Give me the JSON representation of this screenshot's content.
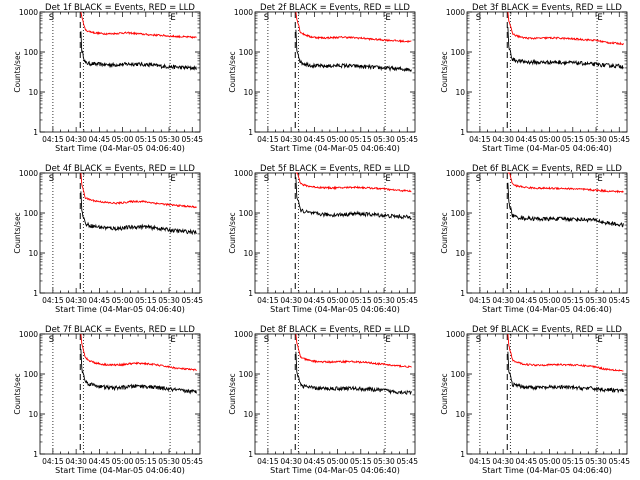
{
  "chart_data": [
    {
      "type": "line",
      "title": "Det 1f BLACK = Events, RED = LLD",
      "xlabel": "Start Time (04-Mar-05 04:06:40)",
      "ylabel": "Counts/sec",
      "ylog": true,
      "ylim": [
        1,
        1000
      ],
      "xtick_labels": [
        "04:15",
        "04:30",
        "04:45",
        "05:00",
        "05:15",
        "05:30",
        "05:45"
      ],
      "ytick_labels": [
        "1",
        "10",
        "100",
        "1000"
      ],
      "markers": {
        "S": "S",
        "E": "E"
      },
      "series": [
        {
          "color": "#000000",
          "values": [
            55,
            52,
            50,
            49,
            48,
            48,
            49,
            50,
            50,
            49,
            48,
            46,
            44,
            43,
            42,
            41,
            40,
            40
          ]
        },
        {
          "color": "#ff0000",
          "values": [
            380,
            330,
            300,
            290,
            285,
            290,
            300,
            300,
            290,
            280,
            270,
            265,
            260,
            250,
            245,
            240,
            235,
            230
          ]
        }
      ]
    },
    {
      "type": "line",
      "title": "Det 2f BLACK = Events, RED = LLD",
      "xlabel": "Start Time (04-Mar-05 04:06:40)",
      "ylabel": "Counts/sec",
      "ylog": true,
      "ylim": [
        1,
        1000
      ],
      "xtick_labels": [
        "04:15",
        "04:30",
        "04:45",
        "05:00",
        "05:15",
        "05:30",
        "05:45"
      ],
      "ytick_labels": [
        "1",
        "10",
        "100",
        "1000"
      ],
      "markers": {
        "S": "S",
        "E": "E"
      },
      "series": [
        {
          "color": "#000000",
          "values": [
            60,
            52,
            47,
            45,
            44,
            45,
            46,
            46,
            45,
            44,
            43,
            42,
            41,
            40,
            39,
            38,
            37,
            37
          ]
        },
        {
          "color": "#ff0000",
          "values": [
            350,
            280,
            240,
            230,
            225,
            228,
            232,
            235,
            230,
            225,
            220,
            210,
            205,
            200,
            195,
            190,
            185,
            182
          ]
        }
      ]
    },
    {
      "type": "line",
      "title": "Det 3f BLACK = Events, RED = LLD",
      "xlabel": "Start Time (04-Mar-05 04:06:40)",
      "ylabel": "Counts/sec",
      "ylog": true,
      "ylim": [
        1,
        1000
      ],
      "xtick_labels": [
        "04:15",
        "04:30",
        "04:45",
        "05:00",
        "05:15",
        "05:30",
        "05:45"
      ],
      "ytick_labels": [
        "1",
        "10",
        "100",
        "1000"
      ],
      "markers": {
        "S": "S",
        "E": "E"
      },
      "series": [
        {
          "color": "#000000",
          "values": [
            70,
            62,
            58,
            56,
            55,
            55,
            56,
            56,
            55,
            54,
            53,
            52,
            50,
            49,
            47,
            46,
            45,
            44
          ]
        },
        {
          "color": "#ff0000",
          "values": [
            320,
            260,
            230,
            220,
            220,
            222,
            225,
            225,
            220,
            215,
            210,
            205,
            200,
            195,
            180,
            170,
            165,
            160
          ]
        }
      ]
    },
    {
      "type": "line",
      "title": "Det 4f BLACK = Events, RED = LLD",
      "xlabel": "Start Time (04-Mar-05 04:06:40)",
      "ylabel": "Counts/sec",
      "ylog": true,
      "ylim": [
        1,
        1000
      ],
      "xtick_labels": [
        "04:15",
        "04:30",
        "04:45",
        "05:00",
        "05:15",
        "05:30",
        "05:45"
      ],
      "ytick_labels": [
        "1",
        "10",
        "100",
        "1000"
      ],
      "markers": {
        "S": "S",
        "E": "E"
      },
      "series": [
        {
          "color": "#000000",
          "values": [
            58,
            50,
            46,
            44,
            42,
            41,
            42,
            44,
            45,
            46,
            44,
            42,
            40,
            38,
            36,
            35,
            34,
            33
          ]
        },
        {
          "color": "#ff0000",
          "values": [
            260,
            220,
            200,
            190,
            180,
            175,
            180,
            190,
            195,
            195,
            185,
            175,
            168,
            160,
            155,
            150,
            145,
            140
          ]
        }
      ]
    },
    {
      "type": "line",
      "title": "Det 5f BLACK = Events, RED = LLD",
      "xlabel": "Start Time (04-Mar-05 04:06:40)",
      "ylabel": "Counts/sec",
      "ylog": true,
      "ylim": [
        1,
        1000
      ],
      "xtick_labels": [
        "04:15",
        "04:30",
        "04:45",
        "05:00",
        "05:15",
        "05:30",
        "05:45"
      ],
      "ytick_labels": [
        "1",
        "10",
        "100",
        "1000"
      ],
      "markers": {
        "S": "S",
        "E": "E"
      },
      "series": [
        {
          "color": "#000000",
          "values": [
            130,
            110,
            100,
            95,
            92,
            90,
            90,
            92,
            95,
            96,
            94,
            92,
            90,
            86,
            84,
            82,
            80,
            78
          ]
        },
        {
          "color": "#ff0000",
          "values": [
            600,
            500,
            460,
            440,
            430,
            425,
            425,
            430,
            440,
            440,
            430,
            420,
            410,
            400,
            380,
            370,
            360,
            350
          ]
        }
      ]
    },
    {
      "type": "line",
      "title": "Det 6f BLACK = Events, RED = LLD",
      "xlabel": "Start Time (04-Mar-05 04:06:40)",
      "ylabel": "Counts/sec",
      "ylog": true,
      "ylim": [
        1,
        1000
      ],
      "xtick_labels": [
        "04:15",
        "04:30",
        "04:45",
        "05:00",
        "05:15",
        "05:30",
        "05:45"
      ],
      "ytick_labels": [
        "1",
        "10",
        "100",
        "1000"
      ],
      "markers": {
        "S": "S",
        "E": "E"
      },
      "series": [
        {
          "color": "#000000",
          "values": [
            95,
            80,
            75,
            73,
            72,
            71,
            71,
            72,
            72,
            71,
            70,
            69,
            68,
            66,
            58,
            55,
            52,
            50
          ]
        },
        {
          "color": "#ff0000",
          "values": [
            600,
            480,
            450,
            430,
            420,
            415,
            415,
            415,
            412,
            405,
            400,
            390,
            380,
            370,
            360,
            350,
            345,
            340
          ]
        }
      ]
    },
    {
      "type": "line",
      "title": "Det 7f BLACK = Events, RED = LLD",
      "xlabel": "Start Time (04-Mar-05 04:06:40)",
      "ylabel": "Counts/sec",
      "ylog": true,
      "ylim": [
        1,
        1000
      ],
      "xtick_labels": [
        "04:15",
        "04:30",
        "04:45",
        "05:00",
        "05:15",
        "05:30",
        "05:45"
      ],
      "ytick_labels": [
        "1",
        "10",
        "100",
        "1000"
      ],
      "markers": {
        "S": "S",
        "E": "E"
      },
      "series": [
        {
          "color": "#000000",
          "values": [
            70,
            58,
            52,
            48,
            46,
            45,
            46,
            48,
            50,
            50,
            48,
            46,
            44,
            42,
            40,
            38,
            37,
            36
          ]
        },
        {
          "color": "#ff0000",
          "values": [
            300,
            220,
            190,
            175,
            170,
            168,
            172,
            180,
            185,
            185,
            178,
            170,
            160,
            150,
            140,
            135,
            130,
            125
          ]
        }
      ]
    },
    {
      "type": "line",
      "title": "Det 8f BLACK = Events, RED = LLD",
      "xlabel": "Start Time (04-Mar-05 04:06:40)",
      "ylabel": "Counts/sec",
      "ylog": true,
      "ylim": [
        1,
        1000
      ],
      "xtick_labels": [
        "04:15",
        "04:30",
        "04:45",
        "05:00",
        "05:15",
        "05:30",
        "05:45"
      ],
      "ytick_labels": [
        "1",
        "10",
        "100",
        "1000"
      ],
      "markers": {
        "S": "S",
        "E": "E"
      },
      "series": [
        {
          "color": "#000000",
          "values": [
            60,
            50,
            46,
            44,
            43,
            43,
            44,
            44,
            44,
            43,
            42,
            41,
            40,
            39,
            37,
            36,
            35,
            34
          ]
        },
        {
          "color": "#ff0000",
          "values": [
            310,
            240,
            215,
            205,
            200,
            200,
            202,
            205,
            205,
            200,
            195,
            190,
            180,
            175,
            165,
            160,
            155,
            150
          ]
        }
      ]
    },
    {
      "type": "line",
      "title": "Det 9f BLACK = Events, RED = LLD",
      "xlabel": "Start Time (04-Mar-05 04:06:40)",
      "ylabel": "Counts/sec",
      "ylog": true,
      "ylim": [
        1,
        1000
      ],
      "xtick_labels": [
        "04:15",
        "04:30",
        "04:45",
        "05:00",
        "05:15",
        "05:30",
        "05:45"
      ],
      "ytick_labels": [
        "1",
        "10",
        "100",
        "1000"
      ],
      "markers": {
        "S": "S",
        "E": "E"
      },
      "series": [
        {
          "color": "#000000",
          "values": [
            60,
            52,
            48,
            47,
            46,
            46,
            46,
            47,
            47,
            46,
            45,
            44,
            44,
            43,
            41,
            40,
            39,
            38
          ]
        },
        {
          "color": "#ff0000",
          "values": [
            260,
            200,
            180,
            172,
            168,
            168,
            170,
            172,
            172,
            170,
            166,
            162,
            158,
            150,
            135,
            130,
            125,
            120
          ]
        }
      ]
    }
  ]
}
